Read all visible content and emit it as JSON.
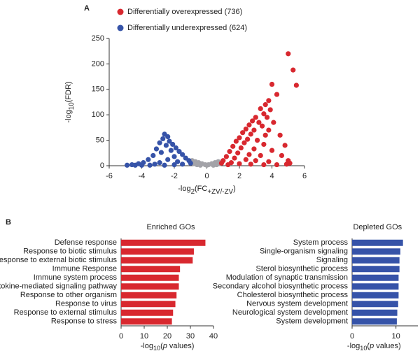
{
  "chart_data": [
    {
      "type": "scatter",
      "panel": "A",
      "ylabel": [
        {
          "text": "-log"
        },
        {
          "text": "10",
          "sub": true
        },
        {
          "text": "(FDR)"
        }
      ],
      "xlabel": [
        {
          "text": "-log"
        },
        {
          "text": "2",
          "sub": true
        },
        {
          "text": "(FC"
        },
        {
          "text": "+ZV/-ZV",
          "sub": true
        },
        {
          "text": ")"
        }
      ],
      "xlim": [
        -6,
        6
      ],
      "xticks": [
        -6,
        -4,
        -2,
        0,
        2,
        4,
        6
      ],
      "ylim": [
        0,
        250
      ],
      "yticks": [
        0,
        50,
        100,
        150,
        200,
        250
      ],
      "series": [
        {
          "color": "#a3a3a8",
          "x": [
            -0.9,
            -0.7,
            -0.5,
            -0.3,
            -0.1,
            0.1,
            0.3,
            0.5,
            0.7,
            -0.8,
            -0.6,
            0.6,
            0.8,
            0,
            -0.4,
            0.4
          ],
          "y": [
            10,
            8,
            6,
            4,
            2,
            2,
            4,
            6,
            8,
            4,
            2,
            2,
            4,
            1,
            1,
            1
          ]
        },
        {
          "name": "Differentially overexpressed (736)",
          "color": "#d8282f",
          "x": [
            5.0,
            5.3,
            5.5,
            4.0,
            4.3,
            3.8,
            3.6,
            3.3,
            3.9,
            3.5,
            3.0,
            3.7,
            2.8,
            3.2,
            4.1,
            2.6,
            3.4,
            2.4,
            2.9,
            3.8,
            2.2,
            2.7,
            3.6,
            4.5,
            2.0,
            2.5,
            3.1,
            1.8,
            2.3,
            3.5,
            4.8,
            1.6,
            2.1,
            2.9,
            4.0,
            1.4,
            1.9,
            2.6,
            3.3,
            4.6,
            1.2,
            1.7,
            2.4,
            3.0,
            3.8,
            5.1,
            1.0,
            1.5,
            2.0,
            2.7,
            3.5,
            4.3,
            0.9,
            1.3,
            5.0,
            4.9
          ],
          "y": [
            220,
            188,
            158,
            160,
            140,
            128,
            120,
            112,
            110,
            102,
            95,
            95,
            88,
            85,
            85,
            80,
            78,
            72,
            70,
            70,
            65,
            62,
            60,
            60,
            55,
            52,
            50,
            48,
            45,
            42,
            40,
            38,
            35,
            33,
            30,
            28,
            25,
            22,
            20,
            20,
            18,
            15,
            12,
            10,
            8,
            5,
            10,
            6,
            4,
            3,
            2,
            2,
            5,
            2,
            10,
            3
          ]
        },
        {
          "name": "Differentially underexpressed (624)",
          "color": "#3653a8",
          "x": [
            -2.6,
            -2.4,
            -2.7,
            -2.3,
            -2.9,
            -2.1,
            -2.5,
            -1.9,
            -3.1,
            -2.2,
            -1.7,
            -2.8,
            -1.5,
            -3.3,
            -2.0,
            -1.3,
            -3.6,
            -2.4,
            -1.1,
            -1.8,
            -3.9,
            -2.9,
            -4.2,
            -1.0,
            -3.2,
            -4.6,
            -4.9,
            -4.0,
            -2.0,
            -1.5,
            -3.5,
            -4.4,
            -2.6
          ],
          "y": [
            62,
            57,
            53,
            48,
            45,
            42,
            40,
            35,
            33,
            30,
            28,
            26,
            22,
            20,
            18,
            15,
            12,
            12,
            10,
            8,
            6,
            6,
            4,
            5,
            3,
            2,
            1,
            1,
            2,
            3,
            1,
            1,
            1
          ]
        }
      ]
    },
    {
      "type": "barh",
      "panel": "B",
      "title": "Enriched GOs",
      "color": "#d8282f",
      "categories": [
        "Defense response",
        "Response to biotic stimulus",
        "Response to external biotic stimulus",
        "Immune Response",
        "Immune system process",
        "Cytokine-mediated signaling pathway",
        "Response to other organism",
        "Response to virus",
        "Response to external stimulus",
        "Response to stress"
      ],
      "values": [
        36.5,
        31.5,
        31,
        25.5,
        25,
        25,
        24,
        23.5,
        22.5,
        22
      ],
      "xlim": [
        0,
        40
      ],
      "xticks": [
        0,
        10,
        20,
        30,
        40
      ],
      "xlabel": [
        {
          "text": "-log"
        },
        {
          "text": "10",
          "sub": true
        },
        {
          "text": "("
        },
        {
          "text": "p",
          "italic": true
        },
        {
          "text": " values)"
        }
      ]
    },
    {
      "type": "barh",
      "title": "Depleted GOs",
      "color": "#3653a8",
      "categories": [
        "System process",
        "Single-organism signaling",
        "Signaling",
        "Sterol biosynthetic process",
        "Modulation of synaptic transmission",
        "Secondary alcohol biosynthetic process",
        "Cholesterol biosynthetic process",
        "Nervous system development",
        "Neurological system development",
        "System development"
      ],
      "values": [
        11.6,
        11,
        10.8,
        10.8,
        10.6,
        10.6,
        10.6,
        10.5,
        10.3,
        10.2
      ],
      "xlim": [
        0,
        15
      ],
      "xticks": [
        0,
        10
      ],
      "xlabel": [
        {
          "text": "-log"
        },
        {
          "text": "10",
          "sub": true
        },
        {
          "text": "("
        },
        {
          "text": "p",
          "italic": true
        },
        {
          "text": " values)"
        }
      ]
    }
  ]
}
